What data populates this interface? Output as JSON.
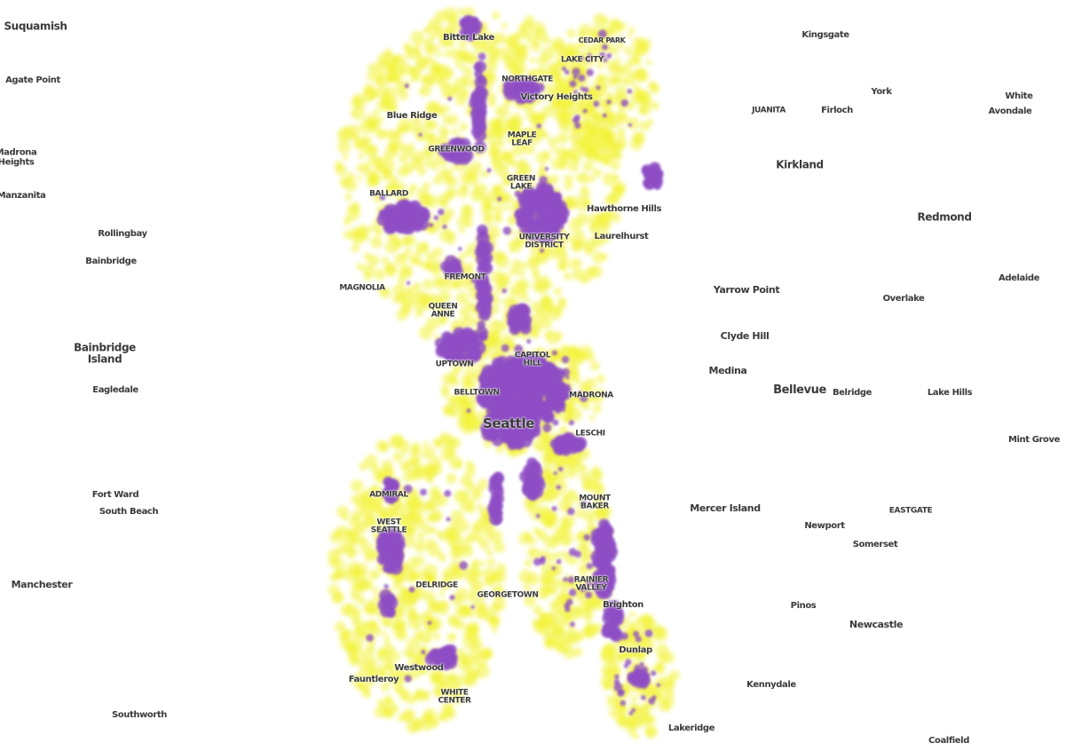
{
  "labels": [
    "Suquamish",
    "Agate Point",
    "Madrona Heights",
    "Manzanita",
    "Rollingbay",
    "Bainbridge",
    "Bainbridge Island",
    "Eagledale",
    "Fort Ward",
    "South Beach",
    "Manchester",
    "Southworth",
    "Kingsgate",
    "York",
    "White",
    "Avondale",
    "JUANITA",
    "Firloch",
    "Kirkland",
    "Redmond",
    "Yarrow Point",
    "Overlake",
    "Adelaide",
    "Clyde Hill",
    "Medina",
    "Bellevue",
    "Belridge",
    "Lake Hills",
    "Mint Grove",
    "Mercer Island",
    "EASTGATE",
    "Newport",
    "Somerset",
    "Pinos",
    "Newcastle",
    "Kennydale",
    "Coalfield",
    "Bitter Lake",
    "CEDAR PARK",
    "LAKE CITY",
    "NORTHGATE",
    "Victory Heights",
    "Blue Ridge",
    "MAPLE LEAF",
    "GREENWOOD",
    "GREEN LAKE",
    "BALLARD",
    "Hawthorne Hills",
    "UNIVERSITY DISTRICT",
    "Laurelhurst",
    "FREMONT",
    "MAGNOLIA",
    "QUEEN ANNE",
    "CAPITOL HILL",
    "UPTOWN",
    "BELLTOWN",
    "MADRONA",
    "Seattle",
    "LESCHI",
    "ADMIRAL",
    "WEST SEATTLE",
    "MOUNT BAKER",
    "RAINIER VALLEY",
    "DELRIDGE",
    "GEORGETOWN",
    "Brighton",
    "Dunlap",
    "Fauntleroy",
    "Westwood",
    "WHITE CENTER",
    "Lakeridge"
  ]
}
